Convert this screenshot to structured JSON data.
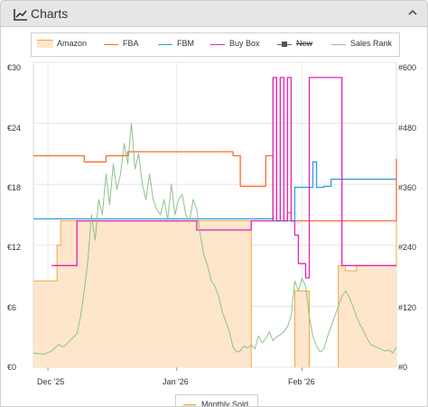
{
  "header": {
    "title": "Charts",
    "icon": "chart-line-icon",
    "collapse_icon": "chevron-up-icon"
  },
  "legend": [
    {
      "label": "Amazon",
      "color": "#f7a440",
      "kind": "area"
    },
    {
      "label": "FBA",
      "color": "#ff6a2a",
      "kind": "line"
    },
    {
      "label": "FBM",
      "color": "#2e9fdc",
      "kind": "line"
    },
    {
      "label": "Buy Box",
      "color": "#e620b4",
      "kind": "line"
    },
    {
      "label": "New",
      "color": "#666666",
      "kind": "marker",
      "struck": true
    },
    {
      "label": "Sales Rank",
      "color": "#8cc28c",
      "kind": "line"
    }
  ],
  "bottom_legend": {
    "label": "Monthly Sold"
  },
  "chart_data": {
    "type": "line",
    "x_ticks": [
      "Dec '25",
      "Jan '26",
      "Feb '26"
    ],
    "y_left_ticks": [
      "€30",
      "€24",
      "€18",
      "€12",
      "€6",
      "€0"
    ],
    "y_right_ticks": [
      "#600",
      "#480",
      "#360",
      "#240",
      "#120",
      "#0"
    ],
    "ylim_left": [
      0,
      30
    ],
    "ylim_right": [
      0,
      600
    ],
    "x_range": [
      0,
      100
    ],
    "series": [
      {
        "name": "Amazon",
        "kind": "area",
        "color": "#f7a440",
        "fill": "#fde6cc",
        "segments": [
          [
            [
              0,
              8.5
            ],
            [
              6.5,
              8.5
            ],
            [
              6.5,
              12
            ],
            [
              7.5,
              12
            ],
            [
              7.5,
              14.4
            ],
            [
              60,
              14.4
            ],
            [
              60,
              0
            ]
          ],
          [
            [
              72,
              0
            ],
            [
              72,
              7.5
            ],
            [
              76,
              7.5
            ],
            [
              76,
              0
            ]
          ],
          [
            [
              84,
              0
            ],
            [
              84,
              10
            ],
            [
              86,
              10
            ],
            [
              86,
              9.5
            ],
            [
              89,
              9.5
            ],
            [
              89,
              10
            ],
            [
              100,
              10
            ],
            [
              100,
              20.5
            ]
          ]
        ]
      },
      {
        "name": "FBA",
        "color": "#ff6a2a",
        "points": [
          [
            0,
            20.8
          ],
          [
            14,
            20.8
          ],
          [
            14,
            20.2
          ],
          [
            20,
            20.2
          ],
          [
            20,
            20.8
          ],
          [
            26,
            20.8
          ],
          [
            26,
            21.2
          ],
          [
            55,
            21.2
          ],
          [
            55,
            20.8
          ],
          [
            57,
            20.8
          ],
          [
            57,
            17.8
          ],
          [
            64,
            17.8
          ],
          [
            64,
            20.8
          ],
          [
            66,
            20.8
          ],
          [
            66,
            14.4
          ],
          [
            70,
            14.4
          ],
          [
            70,
            15.2
          ],
          [
            71,
            15.2
          ],
          [
            71,
            14.4
          ],
          [
            100,
            14.4
          ],
          [
            100,
            20.5
          ]
        ]
      },
      {
        "name": "FBM",
        "color": "#2e9fdc",
        "points": [
          [
            0,
            14.6
          ],
          [
            66,
            14.6
          ],
          [
            66,
            14.4
          ],
          [
            72,
            14.4
          ],
          [
            72,
            17.7
          ],
          [
            77,
            17.7
          ],
          [
            77,
            20.2
          ],
          [
            78,
            20.2
          ],
          [
            78,
            17.7
          ],
          [
            80,
            17.7
          ],
          [
            80,
            17.8
          ],
          [
            82,
            17.8
          ],
          [
            82,
            18.5
          ],
          [
            100,
            18.5
          ]
        ]
      },
      {
        "name": "Buy Box",
        "color": "#e620b4",
        "points": [
          [
            5,
            10
          ],
          [
            12,
            10
          ],
          [
            12,
            14.4
          ],
          [
            45,
            14.4
          ],
          [
            45,
            13.5
          ],
          [
            60,
            13.5
          ],
          [
            60,
            14.4
          ],
          [
            66,
            14.4
          ],
          [
            66,
            28.5
          ],
          [
            67,
            28.5
          ],
          [
            67,
            14.4
          ],
          [
            68,
            14.4
          ],
          [
            68,
            28.5
          ],
          [
            69,
            28.5
          ],
          [
            69,
            14.4
          ],
          [
            70,
            14.4
          ],
          [
            70,
            28.5
          ],
          [
            71,
            28.5
          ],
          [
            71,
            14.4
          ],
          [
            72,
            14.4
          ],
          [
            72,
            13
          ],
          [
            73,
            13
          ],
          [
            73,
            10.2
          ],
          [
            75,
            10.2
          ],
          [
            75,
            8.8
          ],
          [
            76,
            8.8
          ],
          [
            76,
            28.5
          ],
          [
            85,
            28.5
          ],
          [
            85,
            10
          ],
          [
            100,
            10
          ]
        ]
      },
      {
        "name": "Sales Rank",
        "axis": "right",
        "color": "#8cc28c",
        "points": [
          [
            0,
            28
          ],
          [
            3,
            26
          ],
          [
            5,
            32
          ],
          [
            7,
            45
          ],
          [
            8,
            40
          ],
          [
            9,
            44
          ],
          [
            10,
            52
          ],
          [
            12,
            66
          ],
          [
            13,
            100
          ],
          [
            14,
            150
          ],
          [
            15,
            210
          ],
          [
            16,
            300
          ],
          [
            17,
            250
          ],
          [
            18,
            330
          ],
          [
            19,
            300
          ],
          [
            20,
            380
          ],
          [
            21,
            320
          ],
          [
            22,
            400
          ],
          [
            23,
            350
          ],
          [
            24,
            380
          ],
          [
            25,
            440
          ],
          [
            26,
            400
          ],
          [
            27,
            480
          ],
          [
            28,
            390
          ],
          [
            29,
            420
          ],
          [
            30,
            360
          ],
          [
            31,
            330
          ],
          [
            32,
            380
          ],
          [
            33,
            330
          ],
          [
            34,
            310
          ],
          [
            35,
            300
          ],
          [
            36,
            330
          ],
          [
            37,
            290
          ],
          [
            38,
            360
          ],
          [
            39,
            300
          ],
          [
            40,
            330
          ],
          [
            41,
            340
          ],
          [
            42,
            300
          ],
          [
            43,
            285
          ],
          [
            44,
            330
          ],
          [
            45,
            310
          ],
          [
            46,
            260
          ],
          [
            47,
            220
          ],
          [
            48,
            200
          ],
          [
            49,
            170
          ],
          [
            50,
            160
          ],
          [
            51,
            140
          ],
          [
            52,
            110
          ],
          [
            53,
            90
          ],
          [
            54,
            70
          ],
          [
            55,
            40
          ],
          [
            56,
            30
          ],
          [
            57,
            32
          ],
          [
            58,
            42
          ],
          [
            59,
            38
          ],
          [
            60,
            44
          ],
          [
            61,
            36
          ],
          [
            62,
            62
          ],
          [
            63,
            48
          ],
          [
            64,
            56
          ],
          [
            65,
            70
          ],
          [
            66,
            52
          ],
          [
            67,
            60
          ],
          [
            68,
            64
          ],
          [
            69,
            70
          ],
          [
            70,
            80
          ],
          [
            71,
            100
          ],
          [
            72,
            170
          ],
          [
            73,
            150
          ],
          [
            74,
            175
          ],
          [
            75,
            160
          ],
          [
            76,
            100
          ],
          [
            77,
            60
          ],
          [
            78,
            42
          ],
          [
            79,
            30
          ],
          [
            80,
            36
          ],
          [
            81,
            60
          ],
          [
            82,
            80
          ],
          [
            83,
            100
          ],
          [
            84,
            120
          ],
          [
            85,
            140
          ],
          [
            86,
            150
          ],
          [
            87,
            138
          ],
          [
            88,
            120
          ],
          [
            89,
            100
          ],
          [
            90,
            84
          ],
          [
            91,
            70
          ],
          [
            92,
            56
          ],
          [
            93,
            44
          ],
          [
            94,
            42
          ],
          [
            95,
            38
          ],
          [
            96,
            35
          ],
          [
            97,
            32
          ],
          [
            98,
            34
          ],
          [
            99,
            28
          ],
          [
            100,
            40
          ]
        ]
      }
    ]
  }
}
